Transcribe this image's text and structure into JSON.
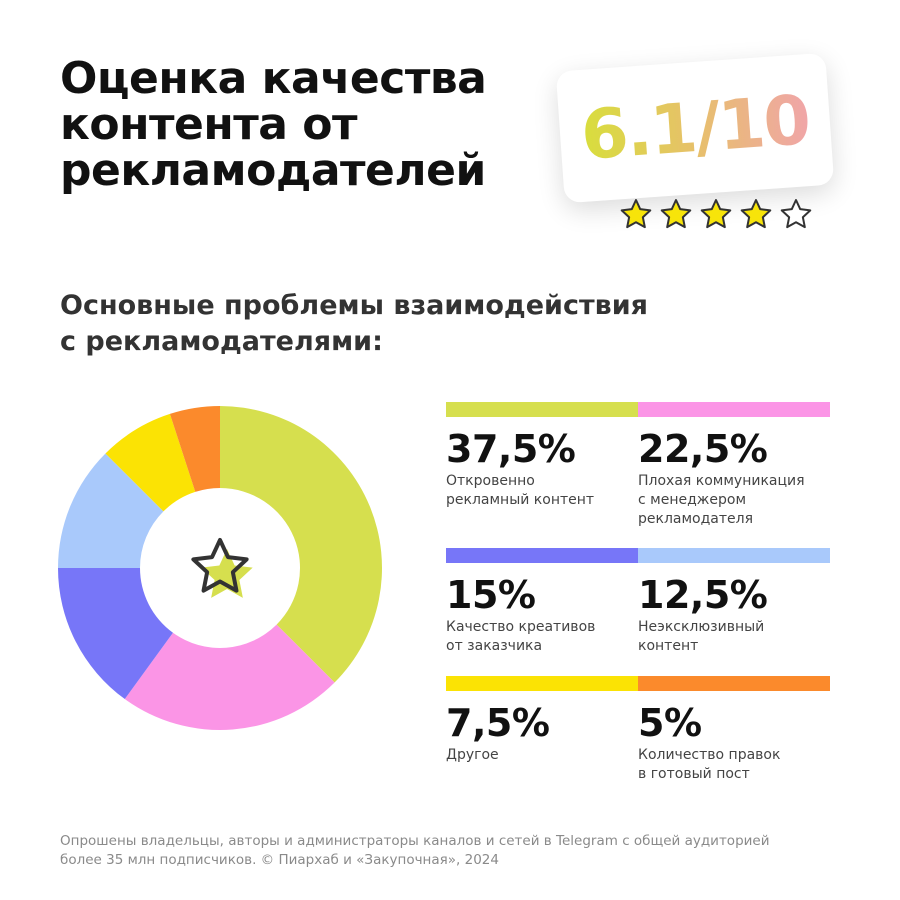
{
  "title_lines": [
    "Оценка качества",
    "контента от",
    "рекламодателей"
  ],
  "score": {
    "value": "6.1/10",
    "stars_filled": 4,
    "stars_total": 5,
    "gradient": [
      "#d8de3c",
      "#e7c06b",
      "#f0a5a8"
    ]
  },
  "subtitle_lines": [
    "Основные проблемы взаимодействия",
    "с рекламодателями:"
  ],
  "chart_data": {
    "type": "pie",
    "donut": true,
    "center_icon": "star-icon",
    "slices": [
      {
        "value": 37.5,
        "label_pct": "37,5%",
        "label": "Откровенно\nрекламный контент",
        "color": "#d6df4e"
      },
      {
        "value": 22.5,
        "label_pct": "22,5%",
        "label": "Плохая коммуникация\nс менеджером\nрекламодателя",
        "color": "#fb95e6"
      },
      {
        "value": 15,
        "label_pct": "15%",
        "label": "Качество креативов\nот заказчика",
        "color": "#7776f8"
      },
      {
        "value": 12.5,
        "label_pct": "12,5%",
        "label": "Неэксклюзивный\nконтент",
        "color": "#a9c9fb"
      },
      {
        "value": 7.5,
        "label_pct": "7,5%",
        "label": "Другое",
        "color": "#fbe304"
      },
      {
        "value": 5,
        "label_pct": "5%",
        "label": "Количество правок\nв готовый пост",
        "color": "#fb8a2c"
      }
    ]
  },
  "footnote_lines": [
    "Опрошены владельцы, авторы и администраторы каналов и сетей в Telegram с общей аудиторией",
    "более 35 млн подписчиков. © Пиархаб и «Закупочная», 2024"
  ]
}
